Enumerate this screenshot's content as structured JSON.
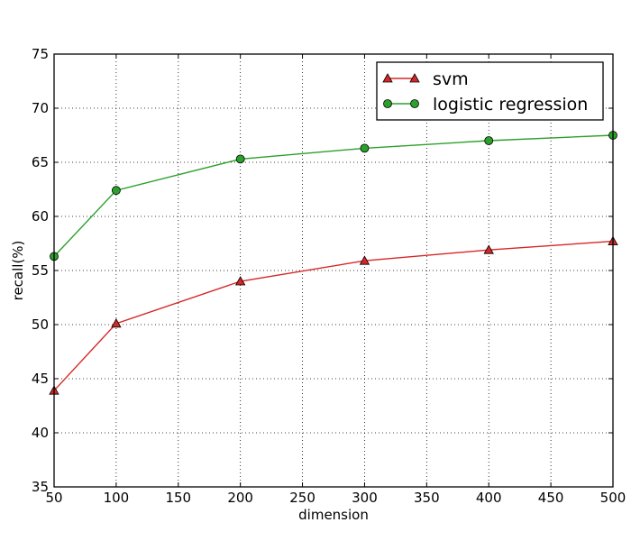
{
  "chart_data": {
    "type": "line",
    "title": "",
    "xlabel": "dimension",
    "ylabel": "recall(%)",
    "xlim": [
      50,
      500
    ],
    "ylim": [
      35,
      75
    ],
    "xticks": [
      50,
      100,
      150,
      200,
      250,
      300,
      350,
      400,
      450,
      500
    ],
    "yticks": [
      35,
      40,
      45,
      50,
      55,
      60,
      65,
      70,
      75
    ],
    "grid": true,
    "grid_style": "dotted",
    "legend_position": "top-right",
    "x": [
      50,
      100,
      200,
      300,
      400,
      500
    ],
    "series": [
      {
        "name": "svm",
        "values": [
          43.9,
          50.1,
          54.0,
          55.9,
          56.9,
          57.7
        ],
        "color": "#d62728",
        "marker": "triangle"
      },
      {
        "name": "logistic regression",
        "values": [
          56.3,
          62.4,
          65.3,
          66.3,
          67.0,
          67.5
        ],
        "color": "#2ca02c",
        "marker": "circle"
      }
    ]
  }
}
